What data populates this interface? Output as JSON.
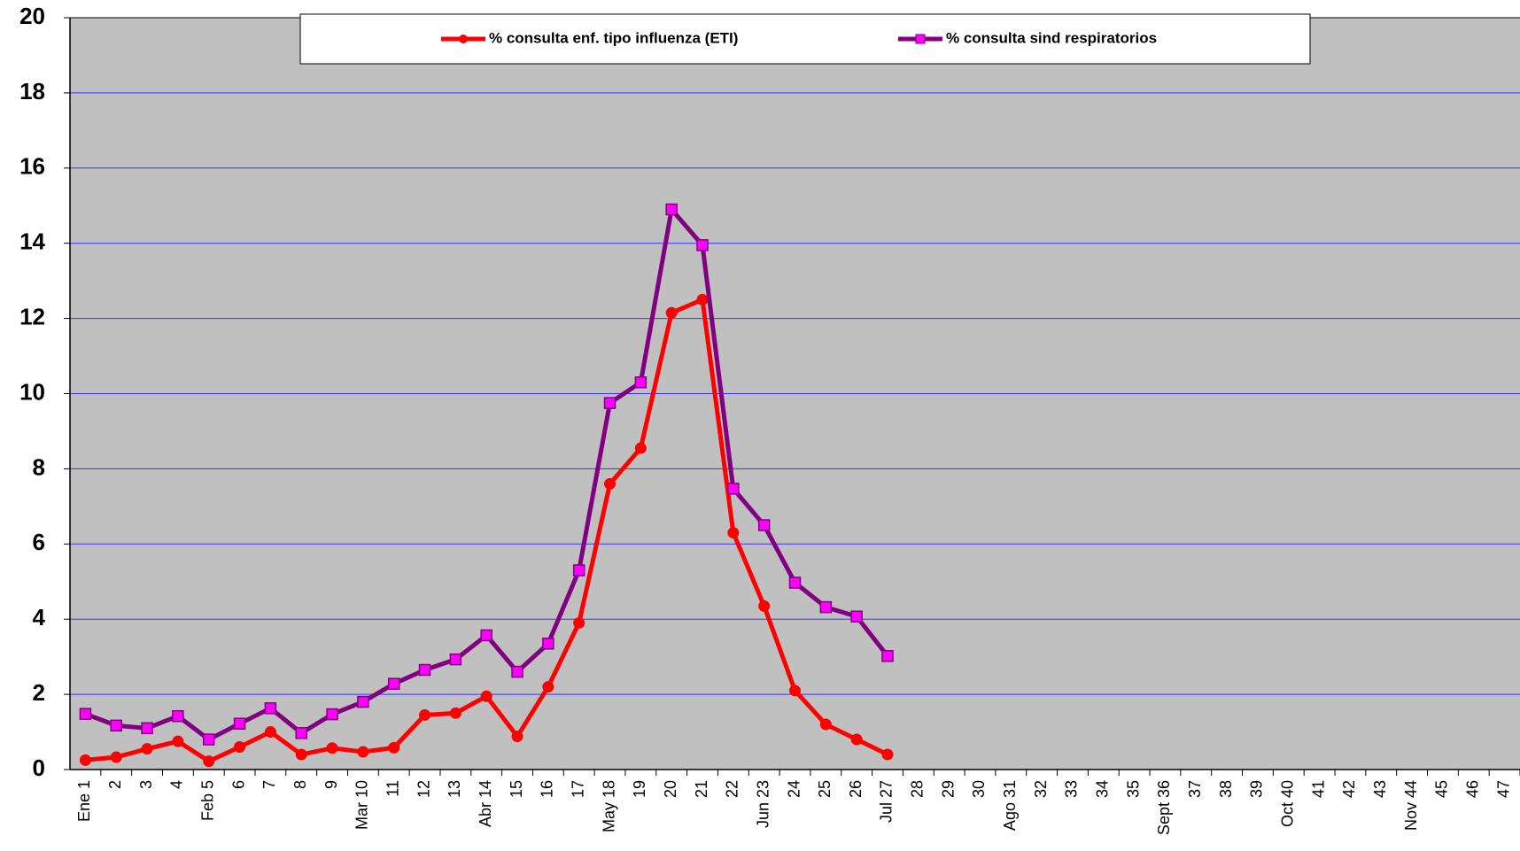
{
  "chart_data": {
    "type": "line",
    "categories": [
      "Ene 1",
      "2",
      "3",
      "4",
      "Feb 5",
      "6",
      "7",
      "8",
      "9",
      "Mar 10",
      "11",
      "12",
      "13",
      "Abr 14",
      "15",
      "16",
      "17",
      "May 18",
      "19",
      "20",
      "21",
      "22",
      "Jun 23",
      "24",
      "25",
      "26",
      "Jul 27",
      "28",
      "29",
      "30",
      "Ago 31",
      "32",
      "33",
      "34",
      "35",
      "Sept 36",
      "37",
      "38",
      "39",
      "Oct 40",
      "41",
      "42",
      "43",
      "Nov 44",
      "45",
      "46",
      "47"
    ],
    "series": [
      {
        "name": "% consulta enf. tipo influenza (ETI)",
        "color": "#ff0000",
        "marker": "circle",
        "values": [
          0.25,
          0.33,
          0.55,
          0.75,
          0.22,
          0.6,
          1.0,
          0.4,
          0.57,
          0.47,
          0.58,
          1.45,
          1.5,
          1.95,
          0.88,
          2.2,
          3.9,
          7.6,
          8.55,
          12.15,
          12.5,
          6.3,
          4.35,
          2.1,
          1.2,
          0.8,
          0.4,
          null,
          null,
          null,
          null,
          null,
          null,
          null,
          null,
          null,
          null,
          null,
          null,
          null,
          null,
          null,
          null,
          null,
          null,
          null,
          null
        ]
      },
      {
        "name": "% consulta sind respiratorios",
        "color": "#800080",
        "marker": "square",
        "marker_fill": "#ff00ff",
        "values": [
          1.48,
          1.17,
          1.1,
          1.42,
          0.8,
          1.22,
          1.63,
          0.97,
          1.47,
          1.8,
          2.28,
          2.65,
          2.93,
          3.57,
          2.6,
          3.35,
          5.3,
          9.75,
          10.3,
          14.9,
          13.95,
          7.47,
          6.5,
          4.97,
          4.32,
          4.07,
          3.02,
          null,
          null,
          null,
          null,
          null,
          null,
          null,
          null,
          null,
          null,
          null,
          null,
          null,
          null,
          null,
          null,
          null,
          null,
          null,
          null
        ]
      }
    ],
    "ylim": [
      0,
      20
    ],
    "yticks": [
      0,
      2,
      4,
      6,
      8,
      10,
      12,
      14,
      16,
      18,
      20
    ],
    "grid": true,
    "grid_color": "#3333ff",
    "plot_background": "#c0c0c0",
    "legend": "top"
  }
}
